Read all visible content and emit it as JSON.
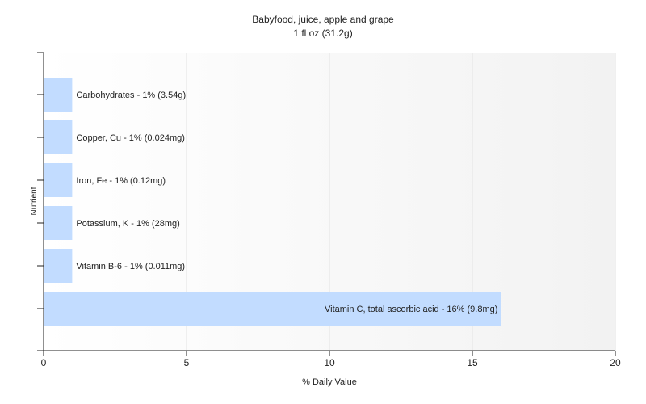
{
  "chart_data": {
    "type": "bar",
    "orientation": "horizontal",
    "title": "Babyfood, juice, apple and grape",
    "subtitle": "1 fl oz (31.2g)",
    "xlabel": "% Daily Value",
    "ylabel": "Nutrient",
    "xlim": [
      0,
      20
    ],
    "xticks": [
      0,
      5,
      10,
      15,
      20
    ],
    "grid": true,
    "bar_color": "#c2dcff",
    "categories": [
      "Carbohydrates",
      "Copper, Cu",
      "Iron, Fe",
      "Potassium, K",
      "Vitamin B-6",
      "Vitamin C, total ascorbic acid"
    ],
    "values": [
      1,
      1,
      1,
      1,
      1,
      16
    ],
    "labels": [
      "Carbohydrates - 1% (3.54g)",
      "Copper, Cu - 1% (0.024mg)",
      "Iron, Fe - 1% (0.12mg)",
      "Potassium, K - 1% (28mg)",
      "Vitamin B-6 - 1% (0.011mg)",
      "Vitamin C, total ascorbic acid - 16% (9.8mg)"
    ]
  }
}
